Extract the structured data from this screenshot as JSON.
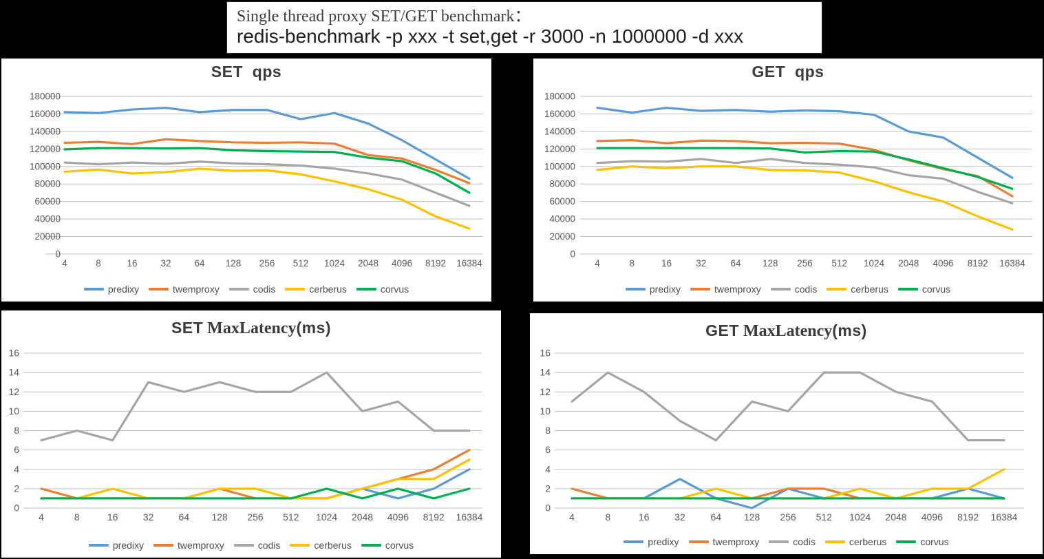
{
  "header": {
    "line1": "Single thread proxy SET/GET benchmark：",
    "line2": "redis-benchmark -p xxx -t set,get -r 3000 -n 1000000 -d xxx"
  },
  "colors": {
    "predixy": "#5B9BD5",
    "twemproxy": "#ED7D31",
    "codis": "#A5A5A5",
    "cerberus": "#FFC000",
    "corvus": "#00B050",
    "gridline": "#BFBFBF",
    "axis_text": "#595959"
  },
  "chart_data": [
    {
      "id": "set_qps",
      "type": "line",
      "title": {
        "bold1": "SET  qps",
        "serif": "",
        "bold2": ""
      },
      "xlabel": "",
      "ylabel": "",
      "ylim": [
        0,
        180000
      ],
      "ytick": 20000,
      "grid": true,
      "legend_position": "bottom",
      "categories": [
        "4",
        "8",
        "16",
        "32",
        "64",
        "128",
        "256",
        "512",
        "1024",
        "2048",
        "4096",
        "8192",
        "16384"
      ],
      "series": [
        {
          "name": "predixy",
          "color": "#5B9BD5",
          "values": [
            162000,
            161000,
            165000,
            167000,
            162000,
            164500,
            164500,
            154000,
            161000,
            149000,
            130000,
            108000,
            86000
          ]
        },
        {
          "name": "twemproxy",
          "color": "#ED7D31",
          "values": [
            127000,
            128000,
            125500,
            131000,
            129000,
            127500,
            127000,
            127500,
            126000,
            113000,
            109000,
            96000,
            81000
          ]
        },
        {
          "name": "codis",
          "color": "#A5A5A5",
          "values": [
            104500,
            102500,
            104500,
            103000,
            105500,
            103500,
            102500,
            101000,
            97500,
            92000,
            85000,
            70000,
            55000
          ]
        },
        {
          "name": "cerberus",
          "color": "#FFC000",
          "values": [
            94000,
            96500,
            92000,
            93500,
            97500,
            95000,
            95500,
            91000,
            83000,
            74000,
            62000,
            43000,
            29000
          ]
        },
        {
          "name": "corvus",
          "color": "#00B050",
          "values": [
            119500,
            121000,
            121000,
            120500,
            121000,
            118500,
            117500,
            117000,
            116500,
            110000,
            106000,
            92000,
            70000
          ]
        }
      ]
    },
    {
      "id": "get_qps",
      "type": "line",
      "title": {
        "bold1": "GET  qps",
        "serif": "",
        "bold2": ""
      },
      "xlabel": "",
      "ylabel": "",
      "ylim": [
        0,
        180000
      ],
      "ytick": 20000,
      "grid": true,
      "legend_position": "bottom",
      "categories": [
        "4",
        "8",
        "16",
        "32",
        "64",
        "128",
        "256",
        "512",
        "1024",
        "2048",
        "4096",
        "8192",
        "16384"
      ],
      "series": [
        {
          "name": "predixy",
          "color": "#5B9BD5",
          "values": [
            167000,
            161500,
            167000,
            163500,
            164500,
            162500,
            164000,
            163000,
            159000,
            140000,
            133000,
            110000,
            87000
          ]
        },
        {
          "name": "twemproxy",
          "color": "#ED7D31",
          "values": [
            129000,
            130000,
            126500,
            129500,
            129000,
            126500,
            127000,
            126000,
            119000,
            107000,
            97000,
            89000,
            66000
          ]
        },
        {
          "name": "codis",
          "color": "#A5A5A5",
          "values": [
            104000,
            106000,
            105500,
            108500,
            104000,
            108500,
            104000,
            102000,
            99000,
            90000,
            86000,
            71000,
            58000
          ]
        },
        {
          "name": "cerberus",
          "color": "#FFC000",
          "values": [
            96000,
            100000,
            98000,
            100000,
            100000,
            96000,
            95500,
            93000,
            83000,
            70500,
            60000,
            43000,
            28000
          ]
        },
        {
          "name": "corvus",
          "color": "#00B050",
          "values": [
            121000,
            121000,
            121000,
            121000,
            121000,
            120500,
            116000,
            117500,
            117000,
            108000,
            98000,
            88000,
            74500
          ]
        }
      ]
    },
    {
      "id": "set_latency",
      "type": "line",
      "title": {
        "bold1": "SET",
        "serif": " MaxLatency",
        "bold2": "(ms)"
      },
      "xlabel": "",
      "ylabel": "",
      "ylim": [
        0,
        16
      ],
      "ytick": 2,
      "grid": true,
      "legend_position": "bottom",
      "categories": [
        "4",
        "8",
        "16",
        "32",
        "64",
        "128",
        "256",
        "512",
        "1024",
        "2048",
        "4096",
        "8192",
        "16384"
      ],
      "series": [
        {
          "name": "predixy",
          "color": "#5B9BD5",
          "values": [
            1,
            1,
            1,
            1,
            1,
            1,
            1,
            1,
            1,
            2,
            1,
            2,
            4
          ]
        },
        {
          "name": "twemproxy",
          "color": "#ED7D31",
          "values": [
            2,
            1,
            1,
            1,
            1,
            2,
            1,
            1,
            1,
            2,
            3,
            4,
            6
          ]
        },
        {
          "name": "codis",
          "color": "#A5A5A5",
          "values": [
            7,
            8,
            7,
            13,
            12,
            13,
            12,
            12,
            14,
            10,
            11,
            8,
            8
          ]
        },
        {
          "name": "cerberus",
          "color": "#FFC000",
          "values": [
            1,
            1,
            2,
            1,
            1,
            2,
            2,
            1,
            1,
            2,
            3,
            3,
            5
          ]
        },
        {
          "name": "corvus",
          "color": "#00B050",
          "values": [
            1,
            1,
            1,
            1,
            1,
            1,
            1,
            1,
            2,
            1,
            2,
            1,
            2
          ]
        }
      ]
    },
    {
      "id": "get_latency",
      "type": "line",
      "title": {
        "bold1": "GET",
        "serif": " MaxLatency",
        "bold2": "(ms)"
      },
      "xlabel": "",
      "ylabel": "",
      "ylim": [
        0,
        16
      ],
      "ytick": 2,
      "grid": true,
      "legend_position": "bottom",
      "categories": [
        "4",
        "8",
        "16",
        "32",
        "64",
        "128",
        "256",
        "512",
        "1024",
        "2048",
        "4096",
        "8192",
        "16384"
      ],
      "series": [
        {
          "name": "predixy",
          "color": "#5B9BD5",
          "values": [
            1,
            1,
            1,
            3,
            1,
            0,
            2,
            1,
            1,
            1,
            1,
            2,
            1
          ]
        },
        {
          "name": "twemproxy",
          "color": "#ED7D31",
          "values": [
            2,
            1,
            1,
            1,
            1,
            1,
            2,
            2,
            1,
            1,
            1,
            1,
            1
          ]
        },
        {
          "name": "codis",
          "color": "#A5A5A5",
          "values": [
            11,
            14,
            12,
            9,
            7,
            11,
            10,
            14,
            14,
            12,
            11,
            7,
            7
          ]
        },
        {
          "name": "cerberus",
          "color": "#FFC000",
          "values": [
            1,
            1,
            1,
            1,
            2,
            1,
            1,
            1,
            2,
            1,
            2,
            2,
            4
          ]
        },
        {
          "name": "corvus",
          "color": "#00B050",
          "values": [
            1,
            1,
            1,
            1,
            1,
            1,
            1,
            1,
            1,
            1,
            1,
            1,
            1
          ]
        }
      ]
    }
  ]
}
